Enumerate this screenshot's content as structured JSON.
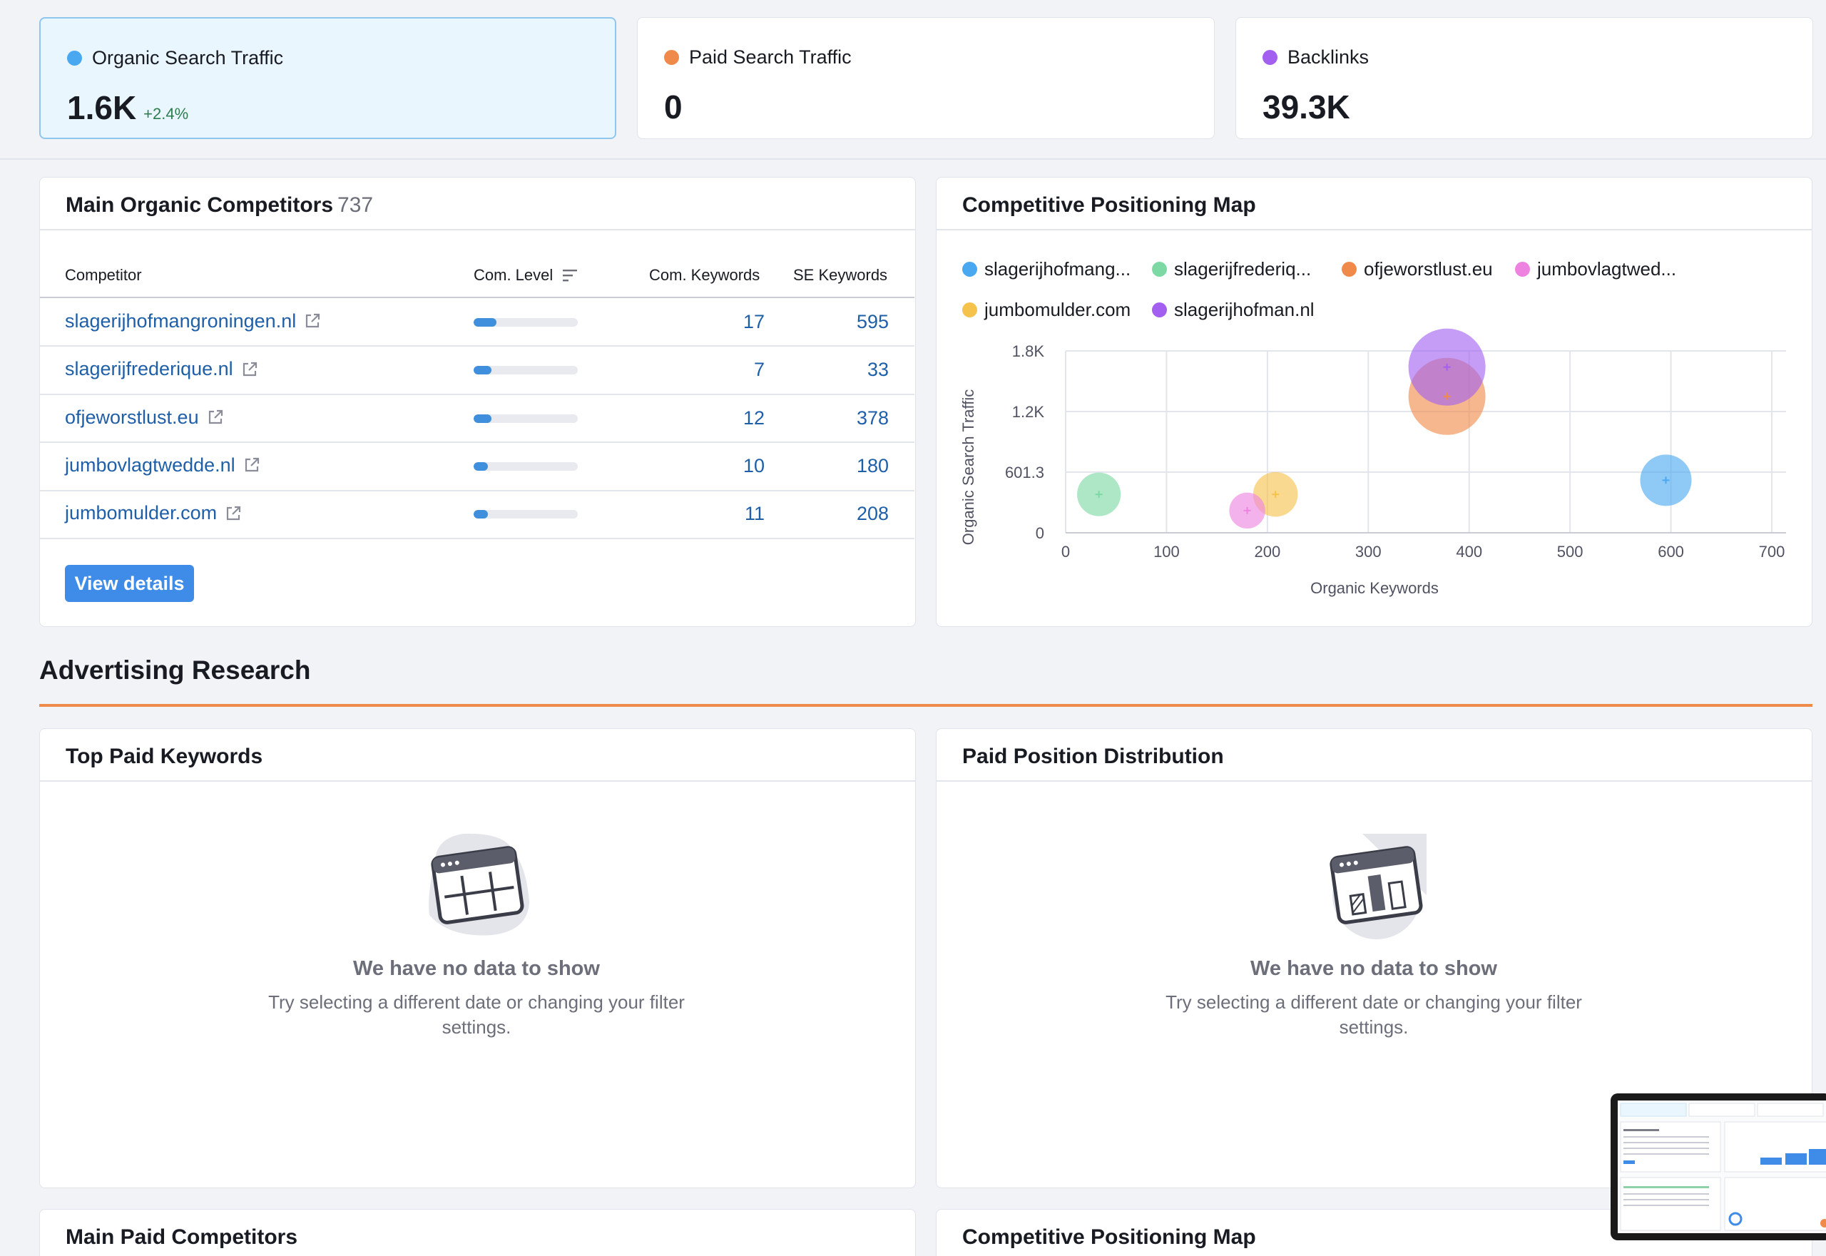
{
  "metrics": [
    {
      "label": "Organic Search Traffic",
      "value": "1.6K",
      "delta": "+2.4%",
      "color": "#4aa8f0"
    },
    {
      "label": "Paid Search Traffic",
      "value": "0",
      "color": "#f08a4b"
    },
    {
      "label": "Backlinks",
      "value": "39.3K",
      "color": "#a25ff0"
    }
  ],
  "competitors_panel": {
    "title": "Main Organic Competitors",
    "count": "737",
    "columns": {
      "competitor": "Competitor",
      "level": "Com. Level",
      "com_keywords": "Com. Keywords",
      "se_keywords": "SE Keywords"
    },
    "rows": [
      {
        "domain": "slagerijhofmangroningen.nl",
        "level": 0.22,
        "com_keywords": "17",
        "se_keywords": "595"
      },
      {
        "domain": "slagerijfrederique.nl",
        "level": 0.17,
        "com_keywords": "7",
        "se_keywords": "33"
      },
      {
        "domain": "ofjeworstlust.eu",
        "level": 0.17,
        "com_keywords": "12",
        "se_keywords": "378"
      },
      {
        "domain": "jumbovlagtwedde.nl",
        "level": 0.14,
        "com_keywords": "10",
        "se_keywords": "180"
      },
      {
        "domain": "jumbomulder.com",
        "level": 0.14,
        "com_keywords": "11",
        "se_keywords": "208"
      }
    ],
    "button": "View details"
  },
  "positioning_panel": {
    "title": "Competitive Positioning Map",
    "legend": [
      {
        "label": "slagerijhofmang...",
        "color": "#4aa8f0"
      },
      {
        "label": "slagerijfrederiq...",
        "color": "#7dd9a3"
      },
      {
        "label": "ofjeworstlust.eu",
        "color": "#f08a4b"
      },
      {
        "label": "jumbovlagtwed...",
        "color": "#ee82e0"
      },
      {
        "label": "jumbomulder.com",
        "color": "#f5c24c"
      },
      {
        "label": "slagerijhofman.nl",
        "color": "#a25ff0"
      }
    ]
  },
  "chart_data": {
    "type": "scatter",
    "xlabel": "Organic Keywords",
    "ylabel": "Organic Search Traffic",
    "xlim": [
      0,
      700
    ],
    "ylim": [
      0,
      1800
    ],
    "x_ticks": [
      "0",
      "100",
      "200",
      "300",
      "400",
      "500",
      "600",
      "700"
    ],
    "y_ticks": [
      "0",
      "601.3",
      "1.2K",
      "1.8K"
    ],
    "grid": true,
    "legend_position": "top",
    "series": [
      {
        "name": "slagerijhofmang...",
        "x": 595,
        "y": 520,
        "size": 1.0,
        "color": "#4aa8f0"
      },
      {
        "name": "slagerijfrederiq...",
        "x": 33,
        "y": 380,
        "size": 0.85,
        "color": "#7dd9a3"
      },
      {
        "name": "ofjeworstlust.eu",
        "x": 378,
        "y": 1350,
        "size": 1.5,
        "color": "#f08a4b"
      },
      {
        "name": "jumbovlagtwed...",
        "x": 180,
        "y": 220,
        "size": 0.7,
        "color": "#ee82e0"
      },
      {
        "name": "jumbomulder.com",
        "x": 208,
        "y": 380,
        "size": 0.87,
        "color": "#f5c24c"
      },
      {
        "name": "slagerijhofman.nl",
        "x": 378,
        "y": 1640,
        "size": 1.5,
        "color": "#a25ff0"
      }
    ]
  },
  "advertising": {
    "title": "Advertising Research",
    "top_paid_keywords": {
      "title": "Top Paid Keywords",
      "empty_title": "We have no data to show",
      "empty_text": "Try selecting a different date or changing your filter settings."
    },
    "paid_position": {
      "title": "Paid Position Distribution",
      "empty_title": "We have no data to show",
      "empty_text": "Try selecting a different date or changing your filter settings."
    },
    "main_paid_competitors": {
      "title": "Main Paid Competitors"
    },
    "paid_positioning_map": {
      "title": "Competitive Positioning Map"
    }
  }
}
